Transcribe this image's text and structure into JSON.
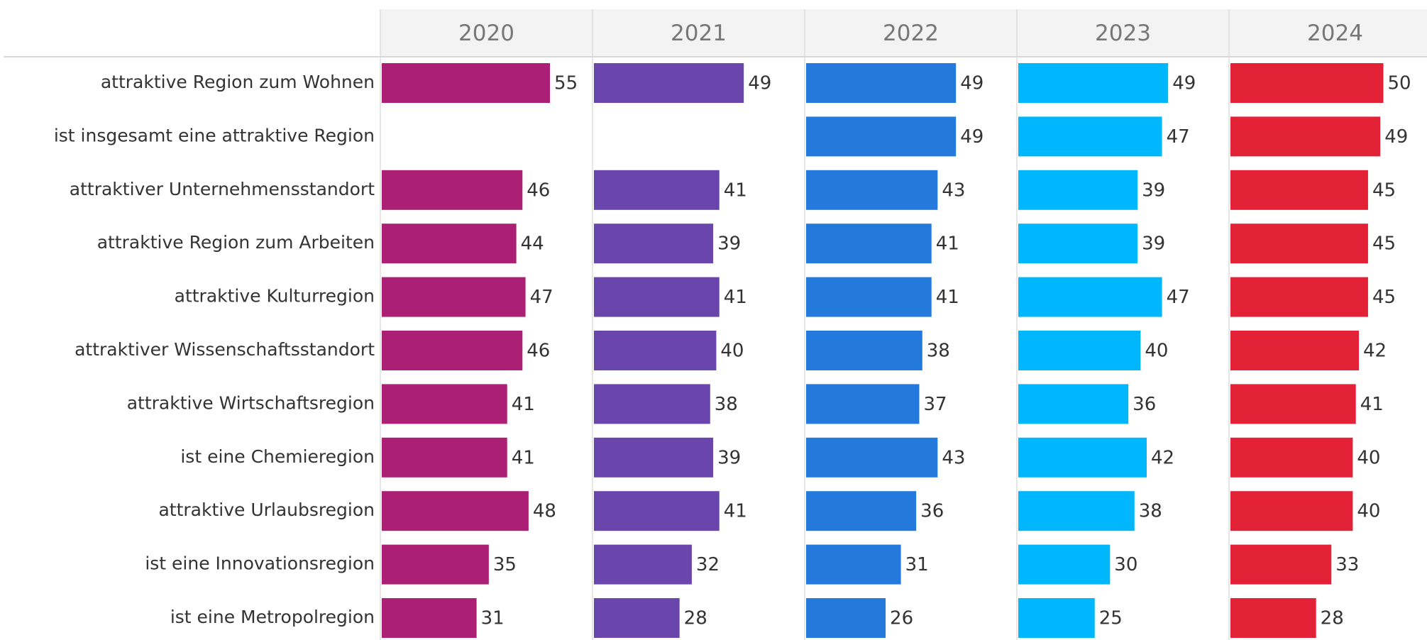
{
  "chart_data": {
    "type": "bar",
    "orientation": "horizontal",
    "categories": [
      "attraktive Region zum Wohnen",
      "ist insgesamt eine attraktive Region",
      "attraktiver Unternehmensstandort",
      "attraktive Region zum Arbeiten",
      "attraktive Kulturregion",
      "attraktiver Wissenschaftsstandort",
      "attraktive Wirtschaftsregion",
      "ist eine Chemieregion",
      "attraktive Urlaubsregion",
      "ist eine Innovationsregion",
      "ist eine Metropolregion"
    ],
    "series": [
      {
        "name": "2020",
        "color": "#ab2074",
        "values": [
          55,
          null,
          46,
          44,
          47,
          46,
          41,
          41,
          48,
          35,
          31
        ]
      },
      {
        "name": "2021",
        "color": "#6a45ab",
        "values": [
          49,
          null,
          41,
          39,
          41,
          40,
          38,
          39,
          41,
          32,
          28
        ]
      },
      {
        "name": "2022",
        "color": "#2479dd",
        "values": [
          49,
          49,
          43,
          41,
          41,
          38,
          37,
          43,
          36,
          31,
          26
        ]
      },
      {
        "name": "2023",
        "color": "#00b7fd",
        "values": [
          49,
          47,
          39,
          39,
          47,
          40,
          36,
          42,
          38,
          30,
          25
        ]
      },
      {
        "name": "2024",
        "color": "#e32238",
        "values": [
          50,
          49,
          45,
          45,
          45,
          42,
          41,
          40,
          40,
          33,
          28
        ]
      }
    ]
  }
}
